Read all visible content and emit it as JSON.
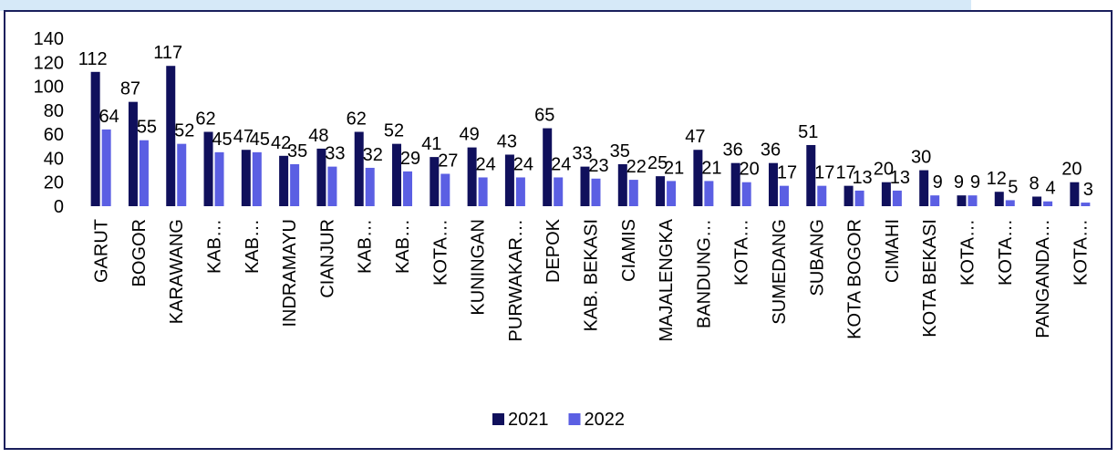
{
  "chart_data": {
    "type": "bar",
    "categories": [
      "GARUT",
      "BOGOR",
      "KARAWANG",
      "KAB…",
      "KAB…",
      "INDRAMAYU",
      "CIANJUR",
      "KAB…",
      "KAB…",
      "KOTA…",
      "KUNINGAN",
      "PURWAKAR…",
      "DEPOK",
      "KAB. BEKASI",
      "CIAMIS",
      "MAJALENGKA",
      "BANDUNG…",
      "KOTA…",
      "SUMEDANG",
      "SUBANG",
      "KOTA BOGOR",
      "CIMAHI",
      "KOTA BEKASI",
      "KOTA…",
      "KOTA…",
      "PANGANDA…",
      "KOTA…"
    ],
    "series": [
      {
        "name": "2021",
        "color": "#10105c",
        "values": [
          112,
          87,
          117,
          62,
          47,
          42,
          48,
          62,
          52,
          41,
          49,
          43,
          65,
          33,
          35,
          25,
          47,
          36,
          36,
          51,
          17,
          20,
          30,
          9,
          12,
          8,
          20
        ]
      },
      {
        "name": "2022",
        "color": "#5b5fe3",
        "values": [
          64,
          55,
          52,
          45,
          45,
          35,
          33,
          32,
          29,
          27,
          24,
          24,
          24,
          23,
          22,
          21,
          21,
          20,
          17,
          17,
          13,
          13,
          9,
          9,
          5,
          4,
          3
        ]
      }
    ],
    "ylim": [
      0,
      140
    ],
    "yticks": [
      0,
      20,
      40,
      60,
      80,
      100,
      120,
      140
    ],
    "legend": "bottom"
  }
}
